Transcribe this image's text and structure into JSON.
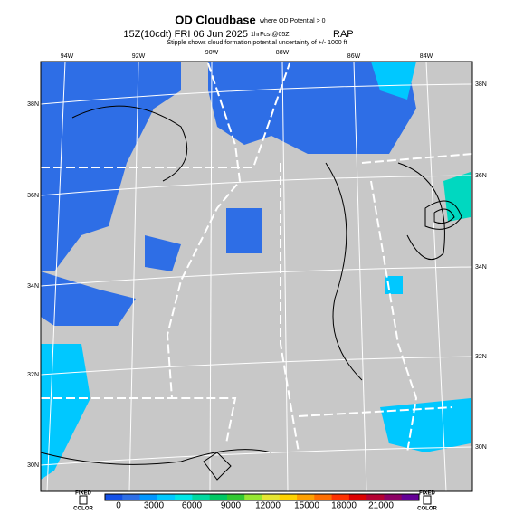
{
  "header": {
    "title": "OD Cloudbase",
    "title_note": "where OD Potential > 0",
    "valid": "15Z(10cdt) FRI 06 Jun 2025",
    "forecast": "1hrFcst@05Z",
    "model": "RAP",
    "note": "Stipple shows cloud formation potential uncertainty of +/- 1000 ft"
  },
  "map": {
    "lon_labels": [
      "94W",
      "92W",
      "90W",
      "88W",
      "86W",
      "84W"
    ],
    "lat_labels_right": [
      "38N",
      "36N",
      "34N",
      "32N",
      "30N"
    ],
    "lat_labels_left": [
      "38N",
      "36N",
      "34N",
      "32N",
      "30N"
    ]
  },
  "colorbar": {
    "labels": [
      "0",
      "3000",
      "6000",
      "9000",
      "12000",
      "15000",
      "18000",
      "21000"
    ],
    "left_label": [
      "FIXED",
      "COLOR"
    ],
    "right_label": [
      "FIXED",
      "COLOR"
    ]
  }
}
